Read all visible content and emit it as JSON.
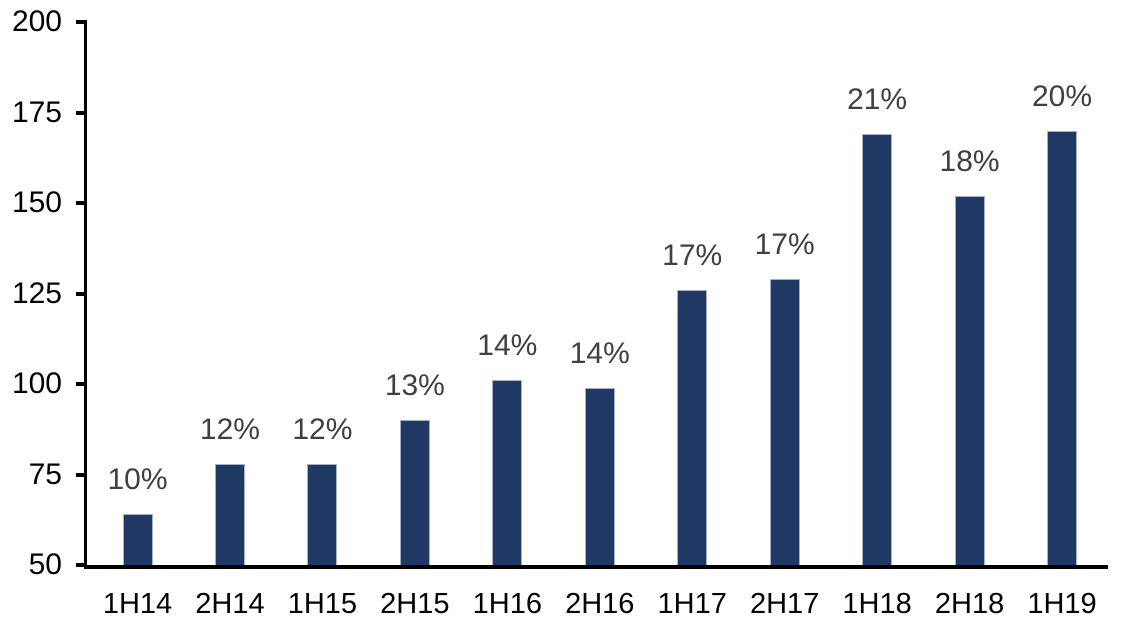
{
  "chart_data": {
    "type": "bar",
    "title": "",
    "xlabel": "",
    "ylabel": "",
    "categories": [
      "1H14",
      "2H14",
      "1H15",
      "2H15",
      "1H16",
      "2H16",
      "1H17",
      "2H17",
      "1H18",
      "2H18",
      "1H19"
    ],
    "values": [
      64,
      78,
      78,
      90,
      101,
      99,
      126,
      129,
      169,
      152,
      170
    ],
    "bar_labels": [
      "10%",
      "12%",
      "12%",
      "13%",
      "14%",
      "14%",
      "17%",
      "17%",
      "21%",
      "18%",
      "20%"
    ],
    "ylim": [
      50,
      200
    ],
    "yticks": [
      200,
      175,
      150,
      125,
      100,
      75,
      50
    ],
    "grid": false,
    "legend": "none",
    "colors": {
      "bar_fill": "#1f3864",
      "bar_edge": "#a4b1c6",
      "data_label": "#404040",
      "axis": "#000000",
      "background": "#ffffff"
    }
  }
}
